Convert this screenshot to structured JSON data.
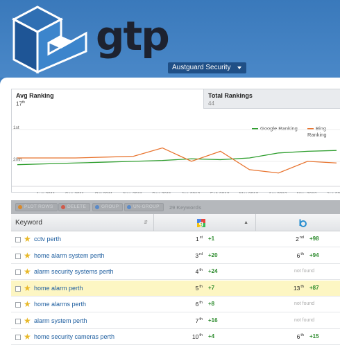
{
  "header": {
    "logo_text": "gtp",
    "account": "Austguard Security"
  },
  "chart_tabs": {
    "avg": {
      "title": "Avg Ranking",
      "value": "17",
      "suffix": "th"
    },
    "total": {
      "title": "Total Rankings",
      "value": "44"
    }
  },
  "chart_data": {
    "type": "line",
    "x": [
      "Jul 2011",
      "Aug 2011",
      "Sep 2011",
      "Oct 2011",
      "Nov 2011",
      "Dec 2011",
      "Jan 2012",
      "Feb 2012",
      "Mar 2012",
      "Apr 2012",
      "May 2012",
      "Jun 2012"
    ],
    "x_tick_labels": [
      "Aug 2011",
      "Sep 2011",
      "Oct 2011",
      "Nov 2011",
      "Dec 2011",
      "Jan 2012",
      "Feb 2012",
      "Mar 2012",
      "Apr 2012",
      "May 2012",
      "Jun 2012"
    ],
    "y_tick_labels": [
      "1st",
      "20th"
    ],
    "ylim": [
      1,
      30
    ],
    "y_inverted": true,
    "series": [
      {
        "name": "Google Ranking",
        "color": "#2e9e2e",
        "values": [
          22,
          21.5,
          21,
          20.5,
          20,
          19.5,
          18.5,
          19,
          18,
          15,
          14,
          13.5
        ]
      },
      {
        "name": "Bing Ranking",
        "color": "#e8742f",
        "values": [
          18,
          18,
          18,
          17.5,
          17,
          12,
          20,
          14,
          25,
          27,
          20,
          21
        ]
      }
    ],
    "legend_position": "top-right"
  },
  "toolbar": {
    "buttons": [
      {
        "label": "PLOT ROWS",
        "icon_color": "#d98a2c"
      },
      {
        "label": "DELETE",
        "icon_color": "#d05a4a"
      },
      {
        "label": "GROUP",
        "icon_color": "#5a8ac8"
      },
      {
        "label": "UN-GROUP",
        "icon_color": "#5a8ac8"
      }
    ],
    "count": "29 Keywords"
  },
  "table": {
    "header_keyword": "Keyword",
    "rows": [
      {
        "keyword": "cctv perth",
        "g_rank": "1",
        "g_sfx": "st",
        "g_chg": "+1",
        "b_rank": "2",
        "b_sfx": "nd",
        "b_chg": "+98",
        "b_found": true,
        "highlight": false
      },
      {
        "keyword": "home alarm system perth",
        "g_rank": "3",
        "g_sfx": "rd",
        "g_chg": "+20",
        "b_rank": "6",
        "b_sfx": "th",
        "b_chg": "+94",
        "b_found": true,
        "highlight": false
      },
      {
        "keyword": "alarm security systems perth",
        "g_rank": "4",
        "g_sfx": "th",
        "g_chg": "+24",
        "b_nf": "not found",
        "b_found": false,
        "highlight": false
      },
      {
        "keyword": "home alarm perth",
        "g_rank": "5",
        "g_sfx": "th",
        "g_chg": "+7",
        "b_rank": "13",
        "b_sfx": "th",
        "b_chg": "+87",
        "b_found": true,
        "highlight": true
      },
      {
        "keyword": "home alarms perth",
        "g_rank": "6",
        "g_sfx": "th",
        "g_chg": "+8",
        "b_nf": "not found",
        "b_found": false,
        "highlight": false
      },
      {
        "keyword": "alarm system perth",
        "g_rank": "7",
        "g_sfx": "th",
        "g_chg": "+16",
        "b_nf": "not found",
        "b_found": false,
        "highlight": false
      },
      {
        "keyword": "home security cameras perth",
        "g_rank": "10",
        "g_sfx": "th",
        "g_chg": "+4",
        "b_rank": "6",
        "b_sfx": "th",
        "b_chg": "+15",
        "b_found": true,
        "highlight": false
      }
    ]
  }
}
